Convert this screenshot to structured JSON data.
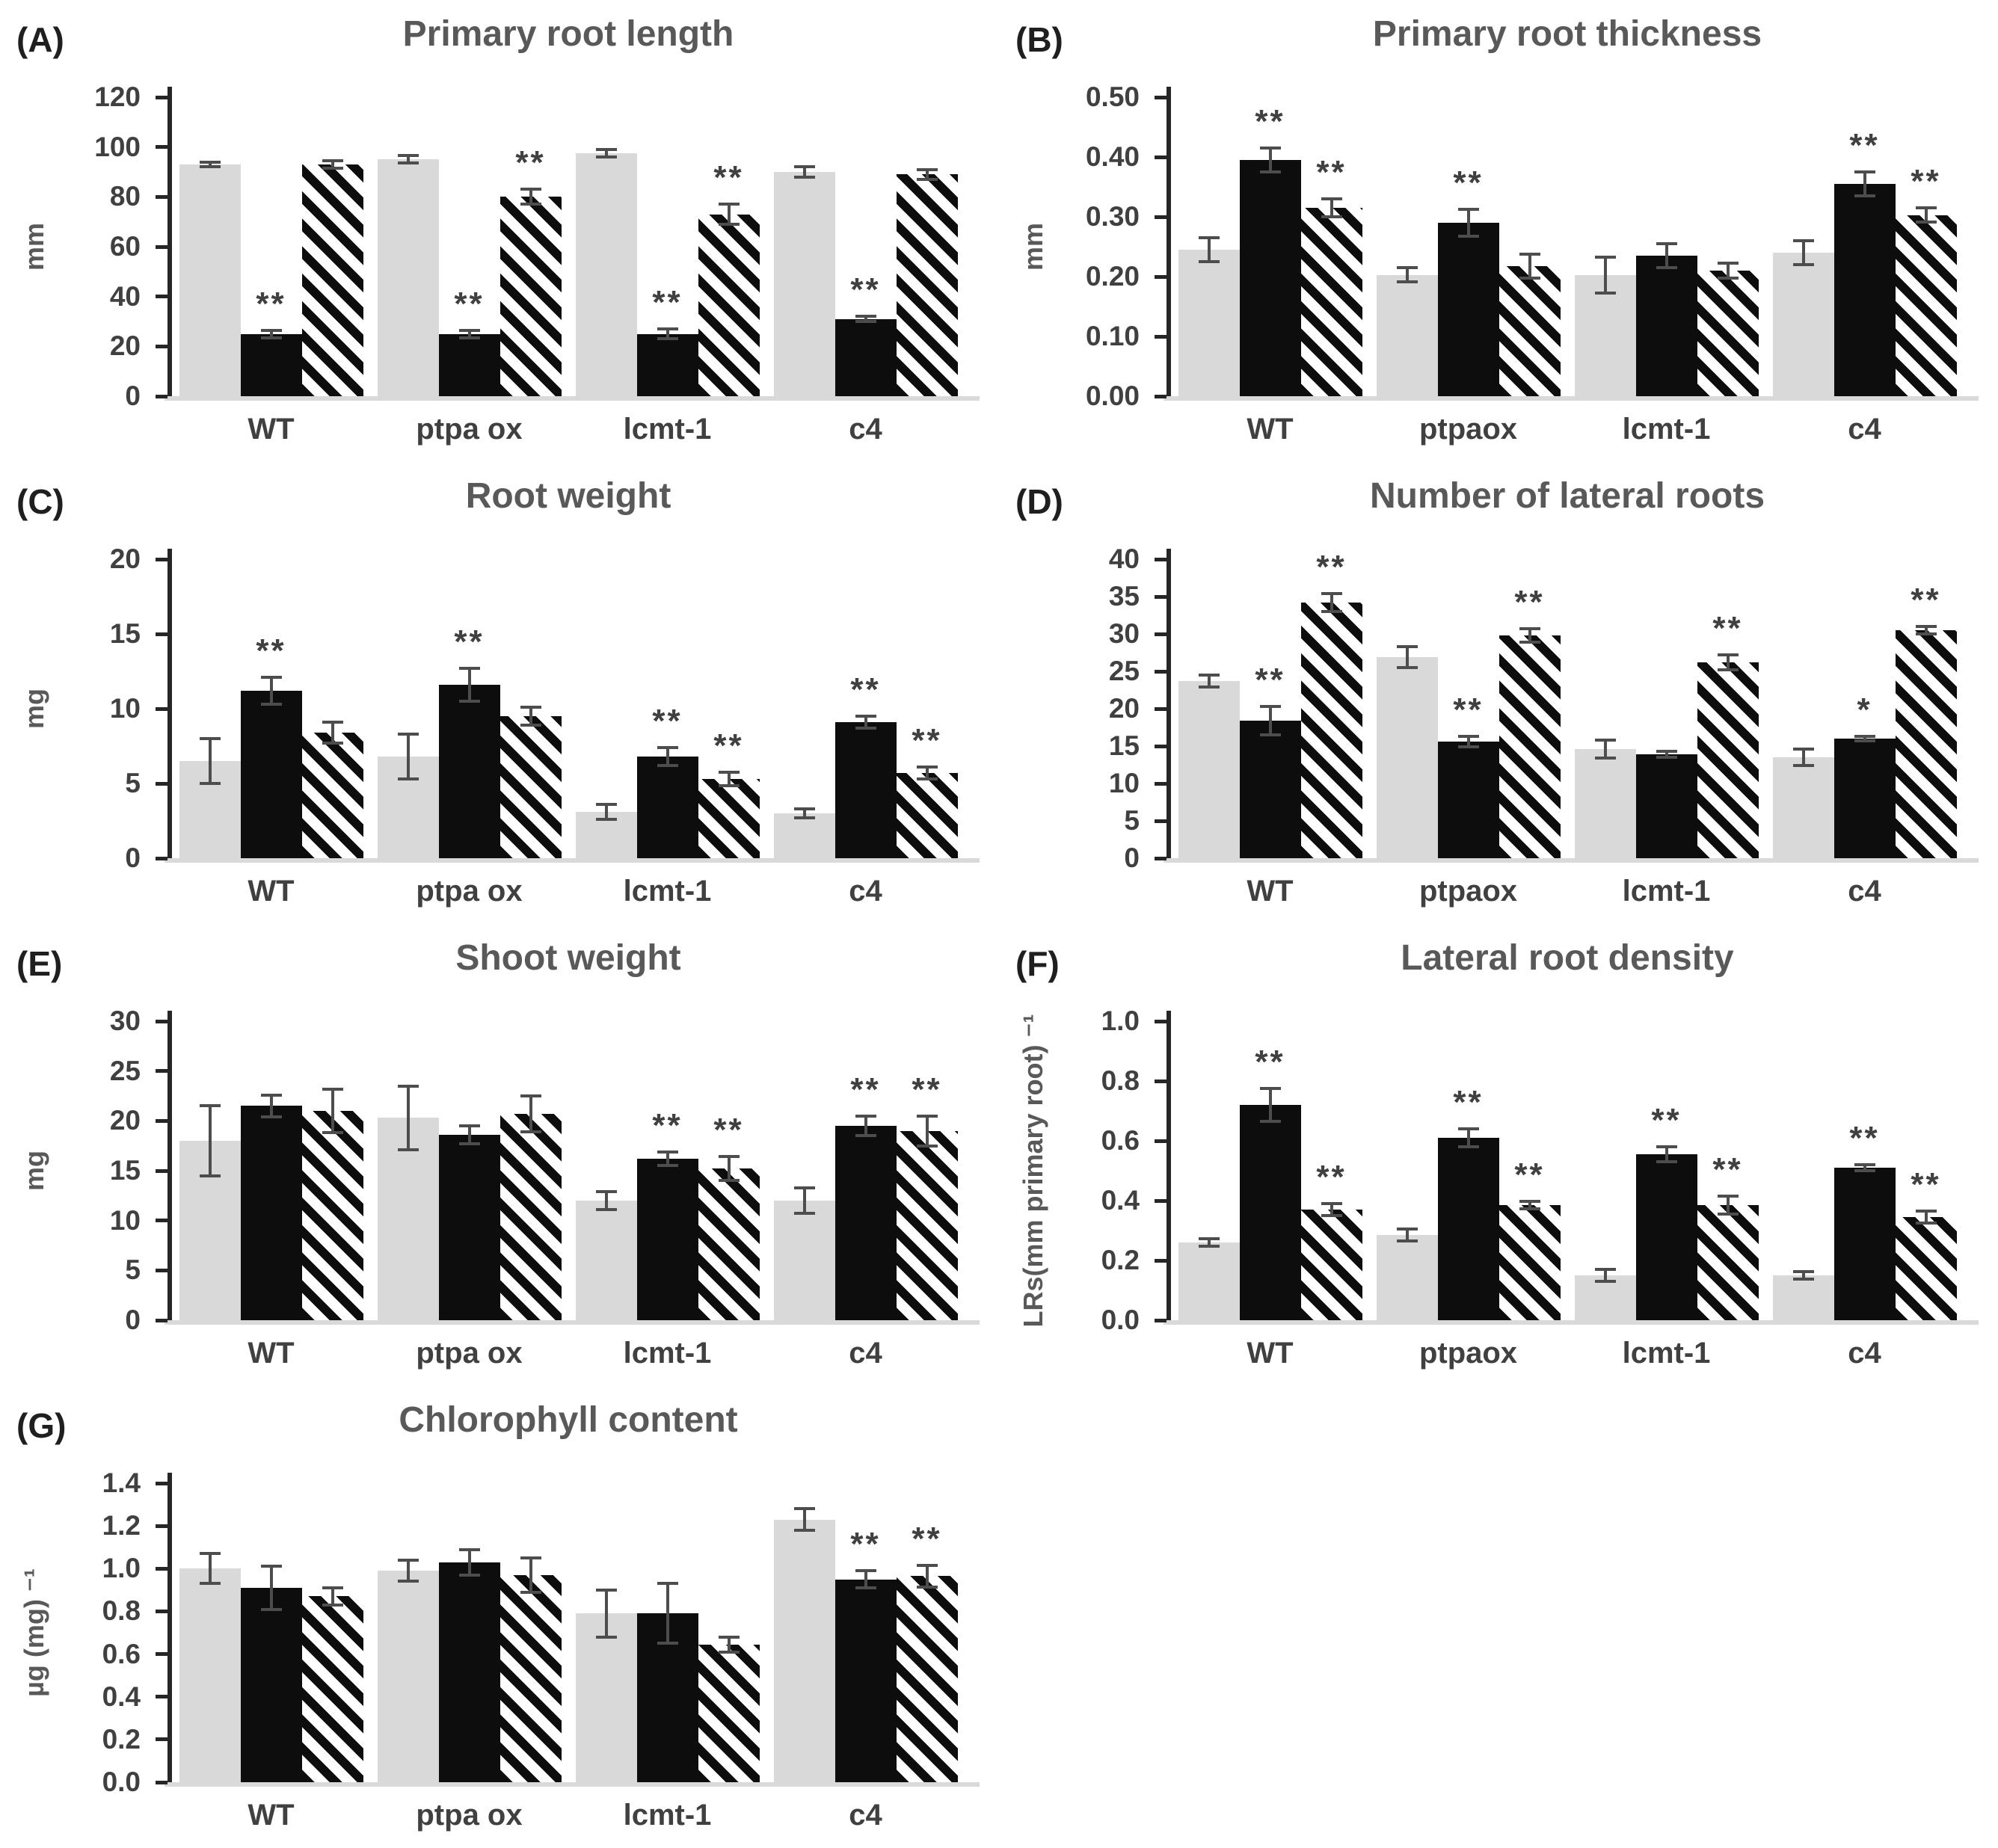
{
  "figure": {
    "background": "#ffffff",
    "columns": 2,
    "panel_count": 7
  },
  "colors": {
    "bar_gray": "#d9d9d9",
    "bar_black": "#0d0d0d",
    "hatch_stripe": "#0d0d0d",
    "title_text": "#595959",
    "axis_text": "#404040",
    "axis_line": "#262626",
    "error_bar": "#4d4d4d"
  },
  "chart_data": [
    {
      "type": "bar",
      "panel": "(A)",
      "title": "Primary root length",
      "ylabel": "mm",
      "yticks": [
        "0",
        "20",
        "40",
        "60",
        "80",
        "100",
        "120"
      ],
      "ylim": [
        0,
        120
      ],
      "categories": [
        "WT",
        "ptpa ox",
        "lcmt-1",
        "c4"
      ],
      "series": [
        {
          "style": "gray",
          "values": [
            93,
            95,
            97.5,
            90
          ],
          "errors": [
            1,
            1.5,
            1.5,
            2
          ],
          "sig": [
            "",
            "",
            "",
            ""
          ]
        },
        {
          "style": "black",
          "values": [
            25,
            25,
            25,
            31
          ],
          "errors": [
            1.5,
            1.5,
            2,
            1
          ],
          "sig": [
            "**",
            "**",
            "**",
            "**"
          ]
        },
        {
          "style": "hatched",
          "values": [
            93,
            80,
            73,
            89
          ],
          "errors": [
            1.5,
            3,
            4,
            2
          ],
          "sig": [
            "",
            "**",
            "**",
            ""
          ]
        }
      ]
    },
    {
      "type": "bar",
      "panel": "(B)",
      "title": "Primary root thickness",
      "ylabel": "mm",
      "yticks": [
        "0.00",
        "0.10",
        "0.20",
        "0.30",
        "0.40",
        "0.50"
      ],
      "ylim": [
        0,
        0.5
      ],
      "categories": [
        "WT",
        "ptpaox",
        "lcmt-1",
        "c4"
      ],
      "series": [
        {
          "style": "gray",
          "values": [
            0.245,
            0.203,
            0.203,
            0.24
          ],
          "errors": [
            0.02,
            0.012,
            0.03,
            0.02
          ],
          "sig": [
            "",
            "",
            "",
            ""
          ]
        },
        {
          "style": "black",
          "values": [
            0.395,
            0.29,
            0.235,
            0.355
          ],
          "errors": [
            0.02,
            0.022,
            0.02,
            0.02
          ],
          "sig": [
            "**",
            "**",
            "",
            "**"
          ]
        },
        {
          "style": "hatched",
          "values": [
            0.315,
            0.218,
            0.21,
            0.303
          ],
          "errors": [
            0.015,
            0.02,
            0.013,
            0.012
          ],
          "sig": [
            "**",
            "",
            "",
            "**"
          ]
        }
      ]
    },
    {
      "type": "bar",
      "panel": "(C)",
      "title": "Root weight",
      "ylabel": "mg",
      "yticks": [
        "0",
        "5",
        "10",
        "15",
        "20"
      ],
      "ylim": [
        0,
        20
      ],
      "categories": [
        "WT",
        "ptpa ox",
        "lcmt-1",
        "c4"
      ],
      "series": [
        {
          "style": "gray",
          "values": [
            6.5,
            6.8,
            3.1,
            3.0
          ],
          "errors": [
            1.5,
            1.5,
            0.5,
            0.3
          ],
          "sig": [
            "",
            "",
            "",
            ""
          ]
        },
        {
          "style": "black",
          "values": [
            11.2,
            11.6,
            6.8,
            9.1
          ],
          "errors": [
            0.9,
            1.1,
            0.6,
            0.4
          ],
          "sig": [
            "**",
            "**",
            "**",
            "**"
          ]
        },
        {
          "style": "hatched",
          "values": [
            8.4,
            9.5,
            5.3,
            5.7
          ],
          "errors": [
            0.7,
            0.6,
            0.45,
            0.4
          ],
          "sig": [
            "",
            "",
            "**",
            "**"
          ]
        }
      ]
    },
    {
      "type": "bar",
      "panel": "(D)",
      "title": "Number of lateral roots",
      "ylabel": "",
      "yticks": [
        "0",
        "5",
        "10",
        "15",
        "20",
        "25",
        "30",
        "35",
        "40"
      ],
      "ylim": [
        0,
        40
      ],
      "categories": [
        "WT",
        "ptpaox",
        "lcmt-1",
        "c4"
      ],
      "series": [
        {
          "style": "gray",
          "values": [
            23.7,
            26.9,
            14.6,
            13.5
          ],
          "errors": [
            0.8,
            1.4,
            1.2,
            1.1
          ],
          "sig": [
            "",
            "",
            "",
            ""
          ]
        },
        {
          "style": "black",
          "values": [
            18.4,
            15.6,
            13.9,
            16.0
          ],
          "errors": [
            1.9,
            0.7,
            0.4,
            0.3
          ],
          "sig": [
            "**",
            "**",
            "",
            "*"
          ]
        },
        {
          "style": "hatched",
          "values": [
            34.2,
            29.8,
            26.2,
            30.5
          ],
          "errors": [
            1.2,
            0.9,
            1.0,
            0.5
          ],
          "sig": [
            "**",
            "**",
            "**",
            "**"
          ]
        }
      ]
    },
    {
      "type": "bar",
      "panel": "(E)",
      "title": "Shoot weight",
      "ylabel": "mg",
      "yticks": [
        "0",
        "5",
        "10",
        "15",
        "20",
        "25",
        "30"
      ],
      "ylim": [
        0,
        30
      ],
      "categories": [
        "WT",
        "ptpa ox",
        "lcmt-1",
        "c4"
      ],
      "series": [
        {
          "style": "gray",
          "values": [
            18,
            20.3,
            12,
            12
          ],
          "errors": [
            3.5,
            3.2,
            0.9,
            1.3
          ],
          "sig": [
            "",
            "",
            "",
            ""
          ]
        },
        {
          "style": "black",
          "values": [
            21.5,
            18.6,
            16.2,
            19.5
          ],
          "errors": [
            1.1,
            0.9,
            0.7,
            1.0
          ],
          "sig": [
            "",
            "",
            "**",
            "**"
          ]
        },
        {
          "style": "hatched",
          "values": [
            21,
            20.7,
            15.2,
            19
          ],
          "errors": [
            2.2,
            1.8,
            1.2,
            1.5
          ],
          "sig": [
            "",
            "",
            "**",
            "**"
          ]
        }
      ]
    },
    {
      "type": "bar",
      "panel": "(F)",
      "title": "Lateral root density",
      "ylabel": "LRs(mm primary root) ⁻¹",
      "yticks": [
        "0.0",
        "0.2",
        "0.4",
        "0.6",
        "0.8",
        "1.0"
      ],
      "ylim": [
        0,
        1.0
      ],
      "categories": [
        "WT",
        "ptpaox",
        "lcmt-1",
        "c4"
      ],
      "series": [
        {
          "style": "gray",
          "values": [
            0.26,
            0.285,
            0.15,
            0.15
          ],
          "errors": [
            0.012,
            0.02,
            0.02,
            0.012
          ],
          "sig": [
            "",
            "",
            "",
            ""
          ]
        },
        {
          "style": "black",
          "values": [
            0.72,
            0.61,
            0.555,
            0.51
          ],
          "errors": [
            0.055,
            0.03,
            0.025,
            0.01
          ],
          "sig": [
            "**",
            "**",
            "**",
            "**"
          ]
        },
        {
          "style": "hatched",
          "values": [
            0.37,
            0.385,
            0.385,
            0.345
          ],
          "errors": [
            0.02,
            0.012,
            0.03,
            0.02
          ],
          "sig": [
            "**",
            "**",
            "**",
            "**"
          ]
        }
      ]
    },
    {
      "type": "bar",
      "panel": "(G)",
      "title": "Chlorophyll content",
      "ylabel": "µg (mg) ⁻¹",
      "yticks": [
        "0.0",
        "0.2",
        "0.4",
        "0.6",
        "0.8",
        "1.0",
        "1.2",
        "1.4"
      ],
      "ylim": [
        0,
        1.4
      ],
      "categories": [
        "WT",
        "ptpa ox",
        "lcmt-1",
        "c4"
      ],
      "series": [
        {
          "style": "gray",
          "values": [
            1.0,
            0.99,
            0.79,
            1.23
          ],
          "errors": [
            0.07,
            0.05,
            0.11,
            0.05
          ],
          "sig": [
            "",
            "",
            "",
            ""
          ]
        },
        {
          "style": "black",
          "values": [
            0.91,
            1.03,
            0.79,
            0.95
          ],
          "errors": [
            0.1,
            0.06,
            0.14,
            0.04
          ],
          "sig": [
            "",
            "",
            "",
            "**"
          ]
        },
        {
          "style": "hatched",
          "values": [
            0.87,
            0.97,
            0.645,
            0.965
          ],
          "errors": [
            0.04,
            0.08,
            0.035,
            0.05
          ],
          "sig": [
            "",
            "",
            "",
            "**"
          ]
        }
      ]
    }
  ]
}
